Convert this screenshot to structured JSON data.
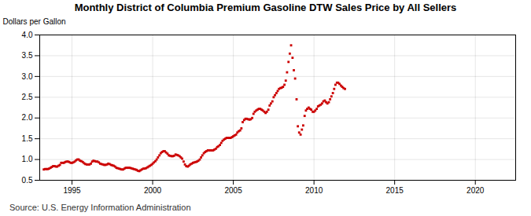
{
  "chart_data": {
    "type": "scatter",
    "title": "Monthly District of Columbia Premium Gasoline DTW Sales Price by All Sellers",
    "ylabel": "Dollars per Gallon",
    "source": "Source: U.S. Energy Information Administration",
    "color": "#CC0000",
    "marker": "square",
    "grid": true,
    "xlim": [
      1993.0,
      2022.5
    ],
    "xticks": [
      1995,
      2000,
      2005,
      2010,
      2015,
      2020
    ],
    "ylim": [
      0.5,
      4.0
    ],
    "yticks": [
      0.5,
      {
        "value": 1.0,
        "label": "1.0"
      },
      1.5,
      {
        "value": 2.0,
        "label": "2.0"
      },
      2.5,
      {
        "value": 3.0,
        "label": "3.0"
      },
      3.5,
      {
        "value": 4.0,
        "label": "4.0"
      }
    ],
    "x": [
      1993.25,
      1993.33,
      1993.42,
      1993.5,
      1993.58,
      1993.67,
      1993.75,
      1993.83,
      1993.92,
      1994.0,
      1994.08,
      1994.17,
      1994.25,
      1994.33,
      1994.42,
      1994.5,
      1994.58,
      1994.67,
      1994.75,
      1994.83,
      1994.92,
      1995.0,
      1995.08,
      1995.17,
      1995.25,
      1995.33,
      1995.42,
      1995.5,
      1995.58,
      1995.67,
      1995.75,
      1995.83,
      1995.92,
      1996.0,
      1996.08,
      1996.17,
      1996.25,
      1996.33,
      1996.42,
      1996.5,
      1996.58,
      1996.67,
      1996.75,
      1996.83,
      1996.92,
      1997.0,
      1997.08,
      1997.17,
      1997.25,
      1997.33,
      1997.42,
      1997.5,
      1997.58,
      1997.67,
      1997.75,
      1997.83,
      1997.92,
      1998.0,
      1998.08,
      1998.17,
      1998.25,
      1998.33,
      1998.42,
      1998.5,
      1998.58,
      1998.67,
      1998.75,
      1998.83,
      1998.92,
      1999.0,
      1999.08,
      1999.17,
      1999.25,
      1999.33,
      1999.42,
      1999.5,
      1999.58,
      1999.67,
      1999.75,
      1999.83,
      1999.92,
      2000.0,
      2000.08,
      2000.17,
      2000.25,
      2000.33,
      2000.42,
      2000.5,
      2000.58,
      2000.67,
      2000.75,
      2000.83,
      2000.92,
      2001.0,
      2001.08,
      2001.17,
      2001.25,
      2001.33,
      2001.42,
      2001.5,
      2001.58,
      2001.67,
      2001.75,
      2001.83,
      2001.92,
      2002.0,
      2002.08,
      2002.17,
      2002.25,
      2002.33,
      2002.42,
      2002.5,
      2002.58,
      2002.67,
      2002.75,
      2002.83,
      2002.92,
      2003.0,
      2003.08,
      2003.17,
      2003.25,
      2003.33,
      2003.42,
      2003.5,
      2003.58,
      2003.67,
      2003.75,
      2003.83,
      2003.92,
      2004.0,
      2004.08,
      2004.17,
      2004.25,
      2004.33,
      2004.42,
      2004.5,
      2004.58,
      2004.67,
      2004.75,
      2004.83,
      2004.92,
      2005.0,
      2005.08,
      2005.17,
      2005.25,
      2005.33,
      2005.42,
      2005.5,
      2005.58,
      2005.67,
      2005.75,
      2005.83,
      2005.92,
      2006.0,
      2006.08,
      2006.17,
      2006.25,
      2006.33,
      2006.42,
      2006.5,
      2006.58,
      2006.67,
      2006.75,
      2006.83,
      2006.92,
      2007.0,
      2007.08,
      2007.17,
      2007.25,
      2007.33,
      2007.42,
      2007.5,
      2007.58,
      2007.67,
      2007.75,
      2007.83,
      2007.92,
      2008.0,
      2008.08,
      2008.17,
      2008.25,
      2008.33,
      2008.42,
      2008.5,
      2008.58,
      2008.67,
      2008.75,
      2008.83,
      2008.92,
      2009.0,
      2009.08,
      2009.17,
      2009.25,
      2009.33,
      2009.42,
      2009.5,
      2009.58,
      2009.67,
      2009.75,
      2009.83,
      2009.92,
      2010.0,
      2010.08,
      2010.17,
      2010.25,
      2010.33,
      2010.42,
      2010.5,
      2010.58,
      2010.67,
      2010.75,
      2010.83,
      2010.92,
      2011.0,
      2011.08,
      2011.17,
      2011.25,
      2011.33,
      2011.42,
      2011.5,
      2011.58,
      2011.67,
      2011.75,
      2011.83,
      2011.92
    ],
    "values": [
      0.76,
      0.77,
      0.77,
      0.77,
      0.78,
      0.8,
      0.82,
      0.84,
      0.84,
      0.83,
      0.83,
      0.85,
      0.87,
      0.92,
      0.92,
      0.92,
      0.94,
      0.95,
      0.95,
      0.94,
      0.92,
      0.92,
      0.93,
      0.95,
      0.98,
      1.0,
      1.0,
      0.97,
      0.96,
      0.94,
      0.91,
      0.89,
      0.88,
      0.88,
      0.88,
      0.9,
      0.95,
      0.97,
      0.96,
      0.95,
      0.95,
      0.93,
      0.9,
      0.89,
      0.88,
      0.87,
      0.87,
      0.88,
      0.9,
      0.89,
      0.87,
      0.86,
      0.85,
      0.83,
      0.8,
      0.79,
      0.78,
      0.77,
      0.76,
      0.76,
      0.78,
      0.8,
      0.8,
      0.8,
      0.8,
      0.79,
      0.78,
      0.77,
      0.76,
      0.75,
      0.73,
      0.72,
      0.74,
      0.76,
      0.78,
      0.78,
      0.79,
      0.81,
      0.83,
      0.85,
      0.87,
      0.9,
      0.93,
      0.96,
      1.0,
      1.05,
      1.1,
      1.15,
      1.18,
      1.2,
      1.2,
      1.17,
      1.14,
      1.1,
      1.09,
      1.08,
      1.08,
      1.09,
      1.12,
      1.11,
      1.1,
      1.08,
      1.05,
      1.02,
      0.95,
      0.88,
      0.84,
      0.83,
      0.85,
      0.88,
      0.9,
      0.92,
      0.93,
      0.94,
      0.95,
      0.97,
      1.0,
      1.05,
      1.1,
      1.15,
      1.18,
      1.2,
      1.22,
      1.22,
      1.22,
      1.22,
      1.22,
      1.24,
      1.26,
      1.3,
      1.32,
      1.35,
      1.4,
      1.45,
      1.48,
      1.5,
      1.52,
      1.52,
      1.52,
      1.52,
      1.54,
      1.56,
      1.58,
      1.6,
      1.65,
      1.68,
      1.7,
      1.75,
      1.9,
      1.95,
      1.98,
      1.98,
      1.97,
      1.96,
      1.97,
      2.0,
      2.1,
      2.15,
      2.18,
      2.2,
      2.22,
      2.22,
      2.2,
      2.18,
      2.15,
      2.12,
      2.15,
      2.2,
      2.3,
      2.35,
      2.4,
      2.5,
      2.55,
      2.6,
      2.65,
      2.7,
      2.72,
      2.73,
      2.75,
      2.8,
      2.9,
      3.1,
      3.35,
      3.55,
      3.75,
      3.45,
      3.15,
      2.95,
      2.45,
      1.8,
      1.65,
      1.6,
      1.72,
      1.82,
      2.05,
      2.18,
      2.22,
      2.25,
      2.22,
      2.2,
      2.15,
      2.15,
      2.18,
      2.22,
      2.28,
      2.3,
      2.32,
      2.35,
      2.4,
      2.42,
      2.38,
      2.35,
      2.38,
      2.45,
      2.52,
      2.6,
      2.7,
      2.8,
      2.85,
      2.85,
      2.82,
      2.78,
      2.75,
      2.72,
      2.7
    ]
  }
}
